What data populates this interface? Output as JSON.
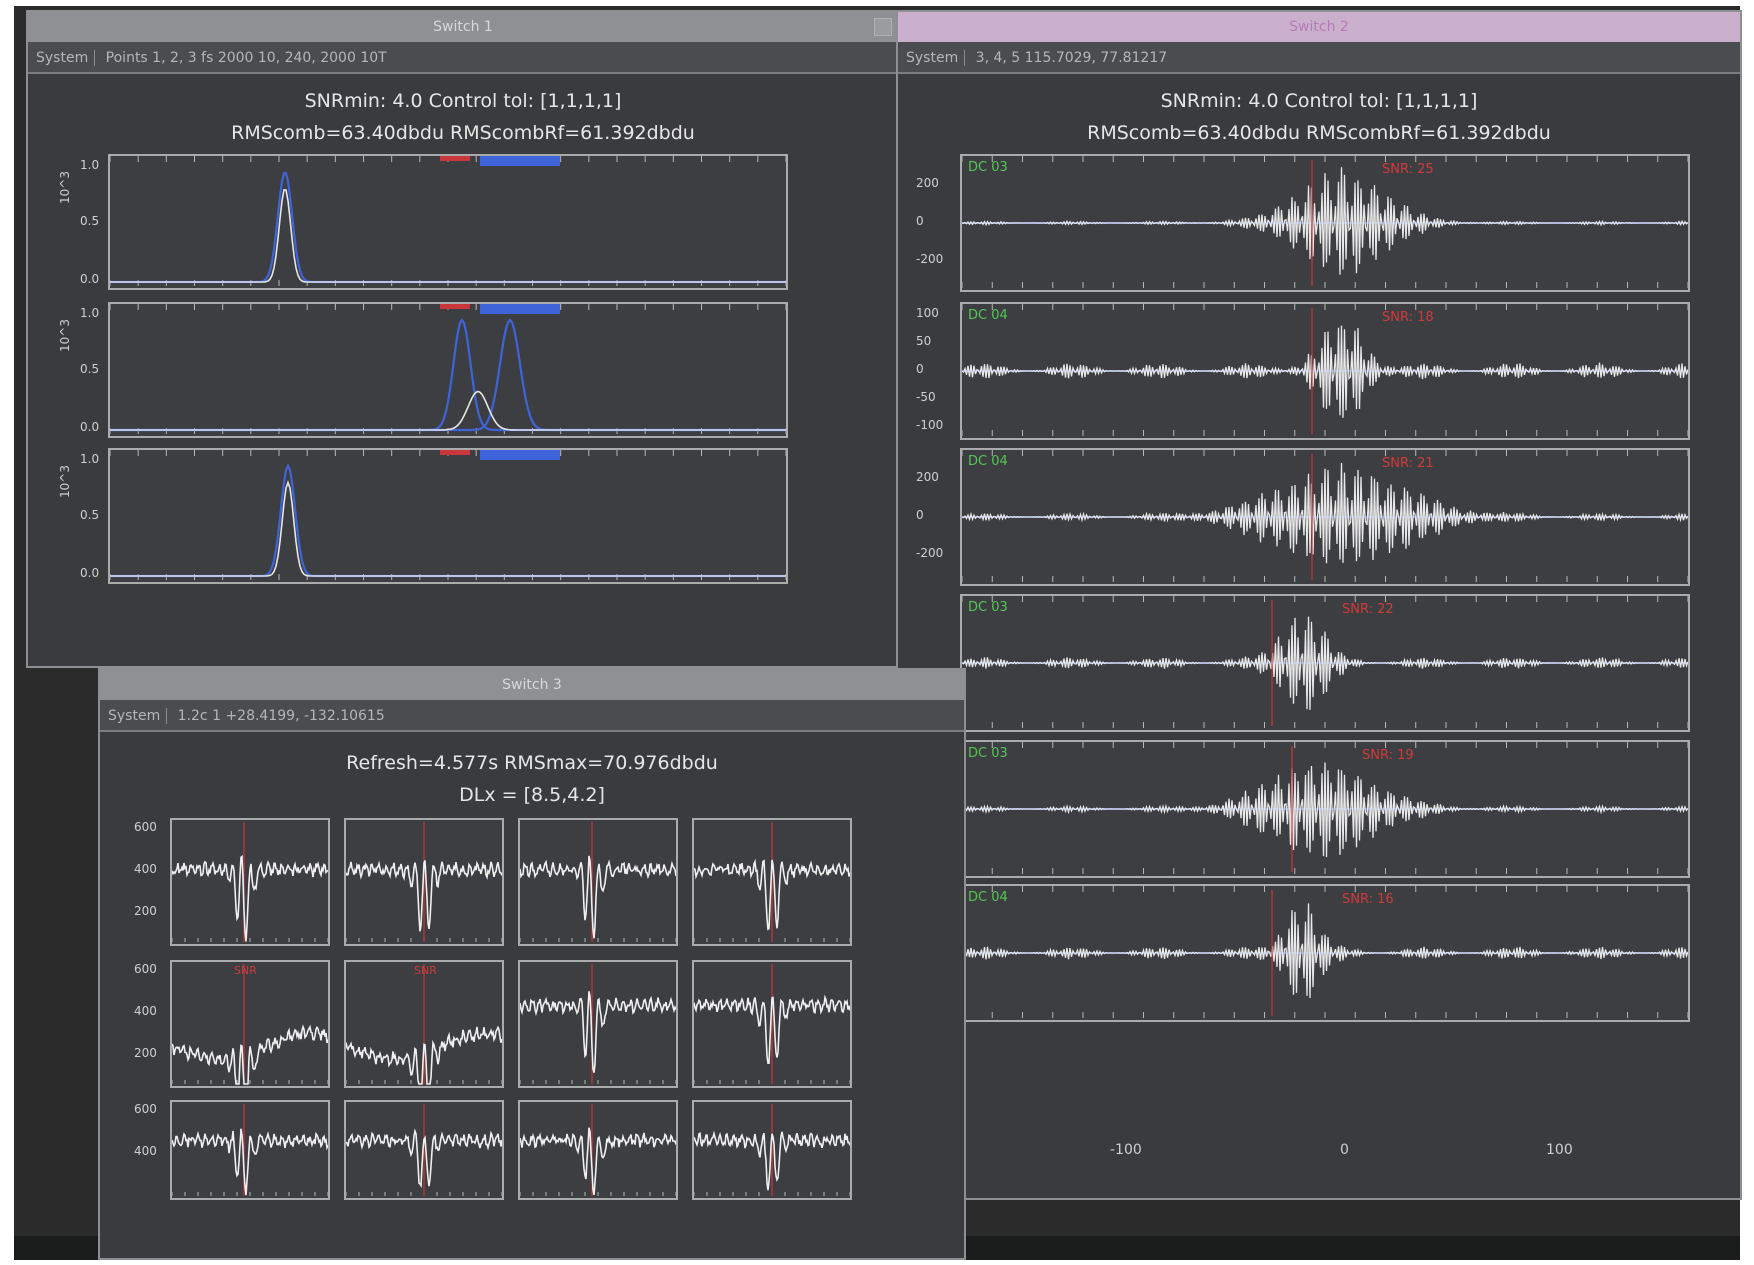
{
  "colors": {
    "window_bg": "#3a3b3d",
    "trace_white": "#e8e8e8",
    "trace_blue": "#3f63d8",
    "marker_red": "#c8383a",
    "channel_green": "#55c655",
    "pink_title": "#cbb0cd"
  },
  "window1": {
    "title": "Switch 1",
    "status_menu": "System",
    "status": "Points 1, 2, 3 fs 2000 10, 240, 2000 10T",
    "headline1": "SNRmin: 4.0  Control tol: [1,1,1,1]",
    "headline2": "RMScomb=63.40dbdu   RMScombRf=61.392dbdu",
    "panels": [
      {
        "ylabel": "10^3",
        "ticks": [
          "1.0",
          "0.5",
          "0.0"
        ]
      },
      {
        "ylabel": "10^3",
        "ticks": [
          "1.0",
          "0.5",
          "0.0"
        ]
      },
      {
        "ylabel": "10^3",
        "ticks": [
          "1.0",
          "0.5",
          "0.0"
        ]
      }
    ]
  },
  "window2": {
    "title": "Switch 2",
    "status_menu": "System",
    "status": "3, 4, 5   115.7029,    77.81217",
    "headline1": "SNRmin: 4.0  Control tol: [1,1,1,1]",
    "headline2": "RMScomb=63.40dbdu   RMScombRf=61.392dbdu",
    "traces": [
      {
        "channel": "DC 03",
        "marker": "SNR: 25",
        "ticks": [
          "200",
          "0",
          "-200"
        ]
      },
      {
        "channel": "DC 04",
        "marker": "SNR: 18",
        "ticks": [
          "100",
          "50",
          "0",
          "-50",
          "-100"
        ]
      },
      {
        "channel": "DC 04",
        "marker": "SNR: 21",
        "ticks": [
          "200",
          "0",
          "-200"
        ]
      },
      {
        "channel": "DC 03",
        "marker": "SNR: 22",
        "ticks": []
      },
      {
        "channel": "DC 03",
        "marker": "SNR: 19",
        "ticks": []
      },
      {
        "channel": "DC 04",
        "marker": "SNR: 16",
        "ticks": []
      }
    ],
    "xticks": [
      "-100",
      "0",
      "100"
    ]
  },
  "window3": {
    "title": "Switch 3",
    "status_menu": "System",
    "status": "1.2c 1   +28.4199,   -132.10615",
    "headline1": "Refresh=4.577s   RMSmax=70.976dbdu",
    "headline2": "DLx = [8.5,4.2]",
    "row_ticks": [
      [
        "600",
        "400",
        "200"
      ],
      [
        "600",
        "400",
        "200"
      ],
      [
        "600",
        "400"
      ]
    ],
    "red_labels": [
      "",
      "",
      "",
      "",
      "SNR",
      "SNR",
      "",
      "",
      "",
      "",
      "",
      ""
    ]
  }
}
